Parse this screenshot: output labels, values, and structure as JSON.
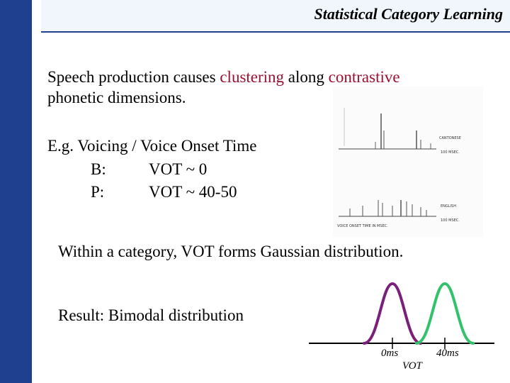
{
  "header": {
    "title": "Statistical Category Learning"
  },
  "body": {
    "p1_line1_a": "Speech production causes ",
    "p1_line1_b": "clustering",
    "p1_line1_c": " along ",
    "p1_line1_d": "contrastive",
    "p1_line2": "phonetic dimensions.",
    "eg_line": "E.g. Voicing / Voice Onset Time",
    "b_label": "B:",
    "b_value": "VOT ~ 0",
    "p_label": "P:",
    "p_value": "VOT ~ 40-50",
    "gaussian_line": "Within a category, VOT forms Gaussian distribution.",
    "result_line": "Result: Bimodal distribution"
  },
  "scan_figure": {
    "label_top": "CANTONESE",
    "label_bottom": "ENGLISH",
    "msec_label": "100 MSEC.",
    "axis_label": "VOICE ONSET TIME IN MSEC."
  },
  "distribution": {
    "tick_0": "0ms",
    "tick_40": "40ms",
    "axis_label": "VOT",
    "colors": {
      "b_curve": "#7a1f7a",
      "p_curve": "#33c26b"
    }
  }
}
